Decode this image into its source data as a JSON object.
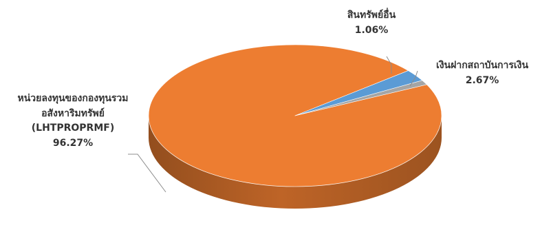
{
  "chart_data": {
    "type": "pie",
    "style": "3d",
    "slices": [
      {
        "name_lines": [
          "หน่วยลงทุนของกองทุนรวม",
          "อสังหาริมทรัพย์",
          "(LHTPROPRMF)"
        ],
        "value": 96.27,
        "value_label": "96.27%",
        "color": "#ED7D31"
      },
      {
        "name_lines": [
          "เงินฝากสถาบันการเงิน"
        ],
        "value": 2.67,
        "value_label": "2.67%",
        "color": "#5B9BD5"
      },
      {
        "name_lines": [
          "สินทรัพย์อื่น"
        ],
        "value": 1.06,
        "value_label": "1.06%",
        "color": "#A5A5A5"
      }
    ]
  }
}
